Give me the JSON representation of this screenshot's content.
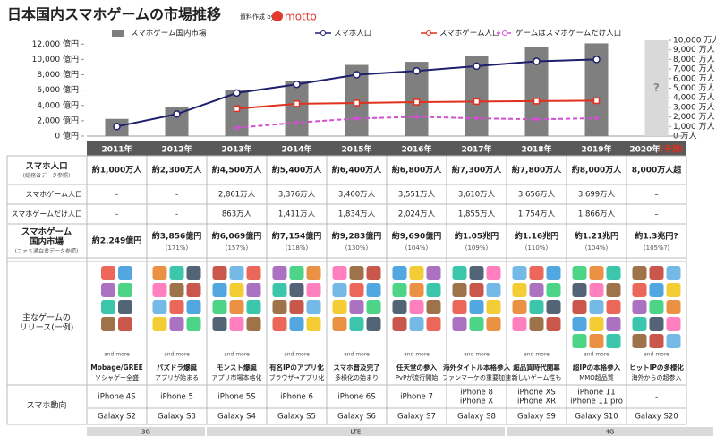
{
  "title": "日本国内スマホゲームの市場推移",
  "credit": "資料作成 by",
  "logo": "motto",
  "chart_data": {
    "type": "bar",
    "categories": [
      "2011年",
      "2012年",
      "2013年",
      "2014年",
      "2015年",
      "2016年",
      "2017年",
      "2018年",
      "2019年",
      "2020年"
    ],
    "forecast_note": "(予測)",
    "unknown_label": "?",
    "series": [
      {
        "name": "スマホゲーム国内市場",
        "type": "bar",
        "color": "#7f7f7f",
        "values": [
          2249,
          3856,
          6069,
          7154,
          9283,
          9690,
          10500,
          11600,
          12100,
          null
        ]
      },
      {
        "name": "スマホ人口",
        "type": "line",
        "axis": "y2",
        "color": "#1f1f6e",
        "marker": "circle",
        "values": [
          1000,
          2300,
          4500,
          5400,
          6400,
          6800,
          7300,
          7800,
          8000,
          null
        ]
      },
      {
        "name": "スマホゲーム人口",
        "type": "line",
        "axis": "y2",
        "color": "#e0301e",
        "marker": "square",
        "values": [
          null,
          null,
          2861,
          3376,
          3460,
          3551,
          3610,
          3656,
          3699,
          null
        ]
      },
      {
        "name": "ゲームはスマホゲームだけ人口",
        "type": "line",
        "axis": "y2",
        "color": "#d24fd2",
        "marker": "diamond",
        "dashed": true,
        "values": [
          null,
          null,
          863,
          1411,
          1834,
          2024,
          1855,
          1754,
          1866,
          null
        ]
      }
    ],
    "ylim": [
      0,
      12500
    ],
    "yticks": [
      {
        "value": 0,
        "label": "0 億円"
      },
      {
        "value": 2000,
        "label": "2,000 億円"
      },
      {
        "value": 4000,
        "label": "4,000 億円"
      },
      {
        "value": 6000,
        "label": "6,000 億円"
      },
      {
        "value": 8000,
        "label": "8,000 億円"
      },
      {
        "value": 10000,
        "label": "10,000 億円"
      },
      {
        "value": 12000,
        "label": "12,000 億円"
      }
    ],
    "y2lim": [
      0,
      10000
    ],
    "y2ticks": [
      {
        "value": 0,
        "label": "0 万人"
      },
      {
        "value": 1000,
        "label": "1,000 万人"
      },
      {
        "value": 2000,
        "label": "2,000 万人"
      },
      {
        "value": 3000,
        "label": "3,000 万人"
      },
      {
        "value": 4000,
        "label": "4,000 万人"
      },
      {
        "value": 5000,
        "label": "5,000 万人"
      },
      {
        "value": 6000,
        "label": "6,000 万人"
      },
      {
        "value": 7000,
        "label": "7,000 万人"
      },
      {
        "value": 8000,
        "label": "8,000 万人"
      },
      {
        "value": 9000,
        "label": "9,000 万人"
      },
      {
        "value": 10000,
        "label": "10,000 万人"
      }
    ],
    "grid": false
  },
  "table": {
    "rows": [
      {
        "label_lines": [
          "スマホ人口"
        ],
        "sublabel": "(総務省データ参照)",
        "bold": true,
        "cells": [
          "約1,000万人",
          "約2,300万人",
          "約4,500万人",
          "約5,400万人",
          "約6,400万人",
          "約6,800万人",
          "約7,300万人",
          "約7,800万人",
          "約8,000万人",
          "8,000万人超"
        ]
      },
      {
        "label_lines": [
          "スマホゲーム人口"
        ],
        "bold": false,
        "cells": [
          "-",
          "-",
          "2,861万人",
          "3,376万人",
          "3,460万人",
          "3,551万人",
          "3,610万人",
          "3,656万人",
          "3,699万人",
          "–"
        ]
      },
      {
        "label_lines": [
          "スマホゲームだけ人口"
        ],
        "bold": false,
        "cells": [
          "-",
          "-",
          "863万人",
          "1,411万人",
          "1,834万人",
          "2,024万人",
          "1,855万人",
          "1,754万人",
          "1,866万人",
          "–"
        ]
      },
      {
        "label_lines": [
          "スマホゲーム",
          "国内市場"
        ],
        "sublabel": "(ファミ通白書データ参照)",
        "bold": true,
        "cells": [
          "約2,249億円",
          "約3,856億円",
          "約6,069億円",
          "約7,154億円",
          "約9,283億円",
          "約9,690億円",
          "約1.05兆円",
          "約1.16兆円",
          "約1.21兆円",
          "約1.3兆円?"
        ],
        "subcells": [
          null,
          "(171%)",
          "(157%)",
          "(118%)",
          "(130%)",
          "(104%)",
          "(109%)",
          "(110%)",
          "(104%)",
          "(105%?)"
        ]
      }
    ]
  },
  "releases": {
    "label_lines": [
      "主なゲームの",
      "リリース(一例)"
    ],
    "and_more": "and more",
    "captions": [
      {
        "title": "Mobage/GREE",
        "subtitle": "ソシャゲー全盛"
      },
      {
        "title": "パズドラ爆誕",
        "subtitle": "アプリが始まる"
      },
      {
        "title": "モンスト爆誕",
        "subtitle": "アプリ市場本格化"
      },
      {
        "title": "有名IPのアプリ化",
        "subtitle": "ブラウザ→アプリ化"
      },
      {
        "title": "スマホ普及完了",
        "subtitle": "多様化の始まり"
      },
      {
        "title": "任天堂の参入",
        "subtitle": "PvPが流行開始"
      },
      {
        "title": "海外タイトル本格参入",
        "subtitle": "ファンマーケの重要加速"
      },
      {
        "title": "超品質時代開幕",
        "subtitle": "新しいゲーム性も"
      },
      {
        "title": "超IPの本格参入",
        "subtitle": "MMO超品質"
      },
      {
        "title": "ヒットIPの多様化",
        "subtitle": "海外からの超参入"
      }
    ]
  },
  "devices": {
    "label": "スマホ動向",
    "iphone": [
      [
        "iPhone 4S"
      ],
      [
        "iPhone 5"
      ],
      [
        "iPhone 5S"
      ],
      [
        "iPhone 6"
      ],
      [
        "iPhone 6S"
      ],
      [
        "iPhone 7"
      ],
      [
        "iPhone 8",
        "iPhone X"
      ],
      [
        "iPhone XS",
        "iPhone XR"
      ],
      [
        "iPhone 11",
        "iPhone 11 pro"
      ],
      [
        "-"
      ]
    ],
    "galaxy": [
      "Galaxy S2",
      "Galaxy S3",
      "Galaxy S4",
      "Galaxy S5",
      "Galaxy S6",
      "Galaxy S7",
      "Galaxy S8",
      "Galaxy S9",
      "Galaxy S10",
      "Galaxy S20"
    ],
    "networks": [
      "3G",
      "LTE",
      "4G"
    ]
  }
}
